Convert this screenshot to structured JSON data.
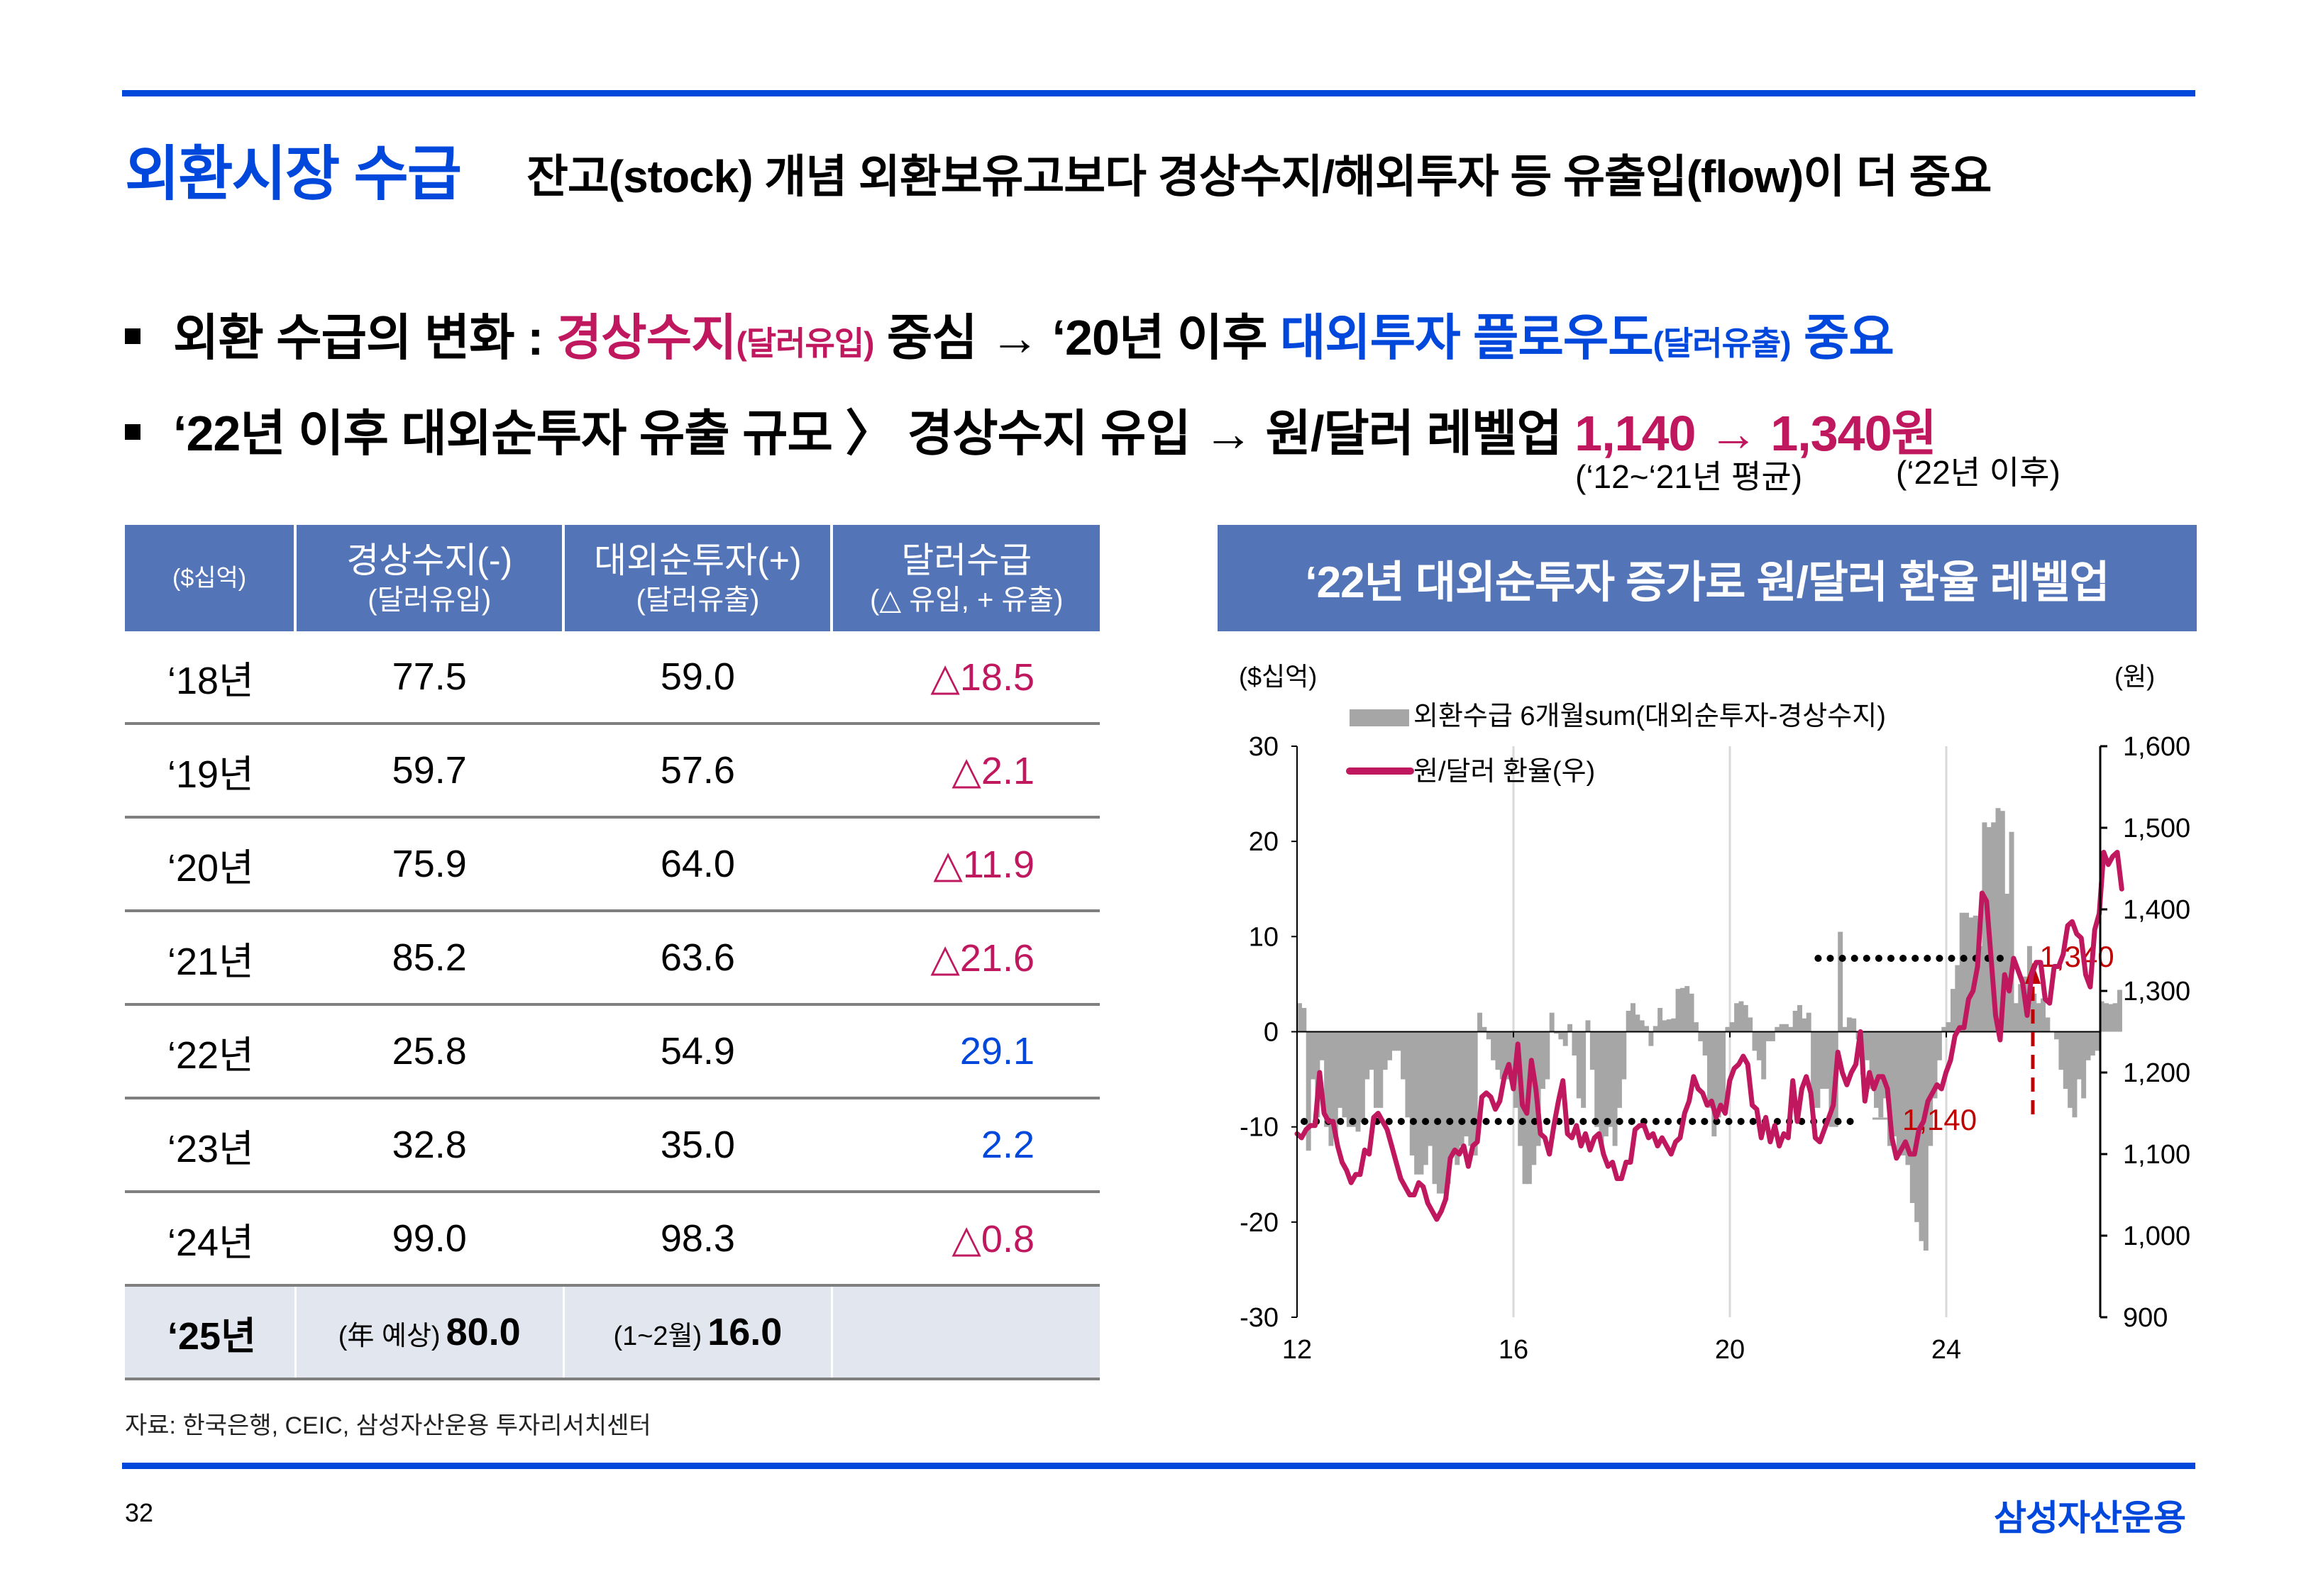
{
  "header": {
    "title": "외환시장 수급",
    "subtitle": "잔고(stock) 개념 외환보유고보다 경상수지/해외투자 등 유출입(flow)이 더 중요"
  },
  "bullets": [
    {
      "pre": "외환 수급의 변화 : ",
      "hl1": "경상수지",
      "hl1_small": "(달러유입)",
      "mid": " 중심 → ‘20년 이후 ",
      "hl2": "대외투자 플로우도",
      "hl2_small": "(달러유출)",
      "post": " 중요"
    },
    {
      "pre": "‘22년 이후 대외순투자 유출 규모 〉 경상수지 유입 → 원/달러 레벨업 ",
      "val1": "1,140",
      "arrow": " → ",
      "val2": "1,340원",
      "note1": "(‘12~‘21년 평균)",
      "note2": "(‘22년 이후)"
    }
  ],
  "table": {
    "headers": [
      {
        "line1": "($십억)",
        "line2": ""
      },
      {
        "line1": "경상수지(-)",
        "line2": "(달러유입)"
      },
      {
        "line1": "대외순투자(+)",
        "line2": "(달러유출)"
      },
      {
        "line1": "달러수급",
        "line2": "(△ 유입,  + 유출)"
      }
    ],
    "rows": [
      {
        "year": "‘18년",
        "current_account": "77.5",
        "net_investment": "59.0",
        "balance": "△18.5",
        "balance_color": "#c0185f"
      },
      {
        "year": "‘19년",
        "current_account": "59.7",
        "net_investment": "57.6",
        "balance": "△2.1",
        "balance_color": "#c0185f"
      },
      {
        "year": "‘20년",
        "current_account": "75.9",
        "net_investment": "64.0",
        "balance": "△11.9",
        "balance_color": "#c0185f"
      },
      {
        "year": "‘21년",
        "current_account": "85.2",
        "net_investment": "63.6",
        "balance": "△21.6",
        "balance_color": "#c0185f"
      },
      {
        "year": "‘22년",
        "current_account": "25.8",
        "net_investment": "54.9",
        "balance": "29.1",
        "balance_color": "#0047dc"
      },
      {
        "year": "‘23년",
        "current_account": "32.8",
        "net_investment": "35.0",
        "balance": "2.2",
        "balance_color": "#0047dc"
      },
      {
        "year": "‘24년",
        "current_account": "99.0",
        "net_investment": "98.3",
        "balance": "△0.8",
        "balance_color": "#c0185f"
      }
    ],
    "last_row": {
      "year": "‘25년",
      "current_account_prefix": "(年 예상)",
      "current_account": "80.0",
      "net_investment_prefix": "(1~2월)",
      "net_investment": "16.0",
      "balance": ""
    }
  },
  "source": "자료: 한국은행, CEIC, 삼성자산운용 투자리서치센터",
  "footer": {
    "page_number": "32",
    "brand": "삼성자산운용"
  },
  "colors": {
    "brand_blue": "#0047dc",
    "header_fill": "#5374b7",
    "magenta": "#c0185f",
    "bar_gray": "#a6a6a6",
    "annotation_red": "#c00000"
  },
  "chart_data": {
    "type": "bar+line",
    "title": "‘22년 대외순투자 증가로 원/달러 환율 레벨업",
    "left_axis_label": "($십억)",
    "right_axis_label": "(원)",
    "left_ylim": [
      -30,
      30
    ],
    "left_ticks": [
      "30",
      "20",
      "10",
      "0",
      "-10",
      "-20",
      "-30"
    ],
    "right_ylim": [
      900,
      1600
    ],
    "right_ticks": [
      "1,600",
      "1,500",
      "1,400",
      "1,300",
      "1,200",
      "1,100",
      "1,000",
      "900"
    ],
    "xlim": [
      2012,
      2026.2
    ],
    "x_ticks": [
      "12",
      "16",
      "20",
      "24"
    ],
    "x_tick_values": [
      2012,
      2016,
      2020,
      2024
    ],
    "grid": "vertical at x ticks",
    "legend": [
      {
        "name": "외환수급 6개월sum(대외순투자-경상수지)",
        "type": "bar",
        "color": "#a6a6a6"
      },
      {
        "name": "원/달러 환율(우)",
        "type": "line",
        "color": "#c0185f"
      }
    ],
    "legend_position": "top-left",
    "annotations": [
      {
        "label": "1,140",
        "value": 1140,
        "x_range": [
          2012,
          2022.4
        ],
        "style": "dotted"
      },
      {
        "label": "1,340",
        "value": 1340,
        "x_range": [
          2021.5,
          2025.2
        ],
        "style": "dotted"
      },
      {
        "label": "",
        "from": 1140,
        "to": 1340,
        "x": 2025.6,
        "style": "dashed-arrow",
        "color": "#c00000"
      }
    ],
    "series": [
      {
        "name": "외환수급 6개월sum(대외순투자-경상수지)",
        "axis": "left",
        "start": 2012.0,
        "step": 0.0833,
        "values": [
          3.0,
          2.5,
          -12.5,
          -5,
          -9,
          -3,
          -10,
          -12,
          -11,
          -8,
          -9,
          -10,
          -10,
          -10.5,
          -9.5,
          -5,
          -4,
          -8,
          -8,
          -4,
          -3,
          -2,
          -2,
          -5,
          -9,
          -13,
          -15,
          -15,
          -14,
          -12,
          -16,
          -17,
          -17,
          -16,
          -13,
          -14,
          -12,
          -11,
          -12,
          -13,
          2,
          0.5,
          -0.8,
          -3,
          -4,
          -5,
          -5,
          -5,
          -8,
          -12,
          -16,
          -16,
          -14,
          -12,
          -6,
          -5,
          2.0,
          -0.2,
          -0.8,
          -1.5,
          0.8,
          -2.5,
          -7,
          -8,
          1.2,
          -4,
          -10,
          -12,
          -11,
          -10,
          -12,
          -8,
          -5,
          2.2,
          3.0,
          1.8,
          1.2,
          0.6,
          -1.5,
          0.6,
          2.5,
          1.2,
          1.3,
          1.4,
          4.5,
          4.6,
          4.8,
          4.0,
          1.0,
          -1.0,
          -2.5,
          -8,
          -11,
          -9,
          -8,
          0.5,
          1.0,
          3.0,
          3.2,
          2.8,
          1.5,
          -2,
          -3,
          -5,
          -1,
          -1,
          0.5,
          0.8,
          0.8,
          0.5,
          2.2,
          2.8,
          1.4,
          2.0,
          -8,
          -8,
          -6,
          -6,
          -10,
          -10,
          10.5,
          0.5,
          1.5,
          1.4,
          -0.8,
          -4.5,
          -3,
          -6,
          -8,
          -9,
          -7,
          -12,
          -11,
          -13,
          -13,
          -14,
          -18,
          -20,
          -22,
          -23,
          -12,
          -7,
          -3,
          0.5,
          1.0,
          4.5,
          7.0,
          12.5,
          12.5,
          12.0,
          12.2,
          9.0,
          22.0,
          21.5,
          22.0,
          23.5,
          23.2,
          14.5,
          21.0,
          3.0,
          5.0,
          5.8,
          9.0,
          4.0,
          3.0,
          3.5,
          1.5,
          0,
          -0.8,
          -4,
          -6,
          -8,
          -9,
          -5,
          -7,
          -3,
          -2.5,
          -2,
          3.2,
          3.0,
          2.9,
          3.0,
          4.4
        ]
      },
      {
        "name": "원/달러 환율(우)",
        "axis": "right",
        "start": 2012.0,
        "step": 0.0833,
        "values": [
          1125,
          1120,
          1130,
          1135,
          1135,
          1200,
          1150,
          1140,
          1140,
          1110,
          1090,
          1080,
          1065,
          1075,
          1075,
          1105,
          1100,
          1145,
          1150,
          1140,
          1130,
          1110,
          1090,
          1070,
          1060,
          1050,
          1050,
          1065,
          1060,
          1040,
          1030,
          1020,
          1030,
          1045,
          1095,
          1105,
          1100,
          1110,
          1085,
          1110,
          1115,
          1170,
          1175,
          1170,
          1155,
          1165,
          1195,
          1210,
          1180,
          1235,
          1160,
          1150,
          1215,
          1180,
          1125,
          1120,
          1100,
          1135,
          1165,
          1190,
          1125,
          1120,
          1135,
          1110,
          1125,
          1105,
          1120,
          1125,
          1100,
          1085,
          1090,
          1070,
          1070,
          1090,
          1090,
          1130,
          1135,
          1135,
          1120,
          1125,
          1110,
          1120,
          1110,
          1100,
          1115,
          1120,
          1150,
          1165,
          1195,
          1180,
          1175,
          1160,
          1165,
          1145,
          1160,
          1150,
          1190,
          1205,
          1210,
          1220,
          1210,
          1160,
          1155,
          1120,
          1145,
          1115,
          1135,
          1110,
          1125,
          1120,
          1190,
          1140,
          1180,
          1195,
          1175,
          1120,
          1115,
          1130,
          1145,
          1160,
          1225,
          1200,
          1185,
          1200,
          1210,
          1250,
          1165,
          1200,
          1180,
          1195,
          1195,
          1180,
          1120,
          1095,
          1105,
          1115,
          1100,
          1100,
          1130,
          1140,
          1165,
          1175,
          1185,
          1180,
          1200,
          1215,
          1245,
          1255,
          1255,
          1290,
          1300,
          1330,
          1420,
          1410,
          1340,
          1270,
          1240,
          1320,
          1300,
          1340,
          1325,
          1310,
          1270,
          1320,
          1335,
          1335,
          1290,
          1285,
          1330,
          1330,
          1345,
          1380,
          1385,
          1370,
          1365,
          1320,
          1305,
          1375,
          1395,
          1470,
          1455,
          1465,
          1470,
          1425
        ]
      }
    ]
  }
}
